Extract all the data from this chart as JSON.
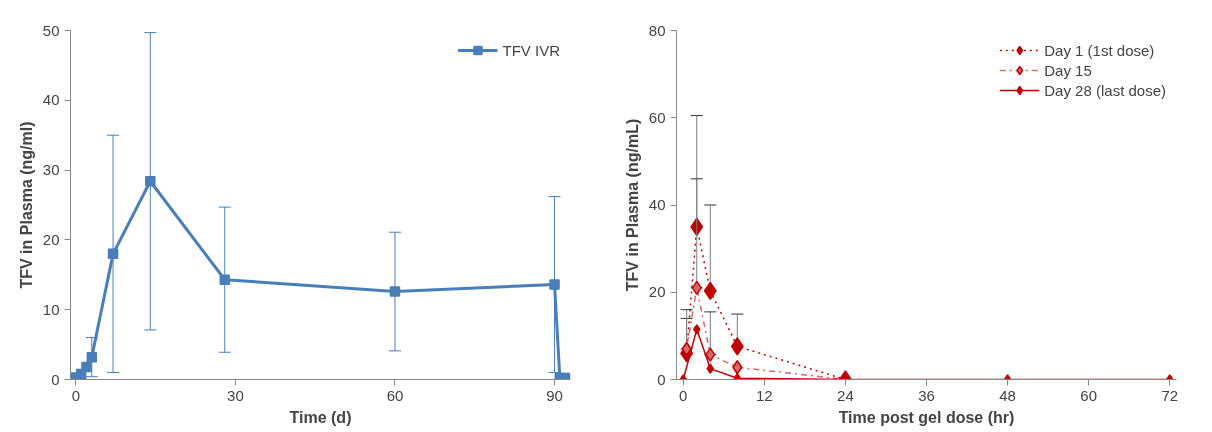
{
  "chart_data": [
    {
      "type": "line",
      "xlabel": "Time (d)",
      "ylabel": "TFV in Plasma (ng/ml)",
      "x": [
        0,
        1,
        2,
        3,
        7,
        14,
        28,
        60,
        90,
        91,
        92
      ],
      "xlim": [
        -1,
        93
      ],
      "xticks": [
        0,
        30,
        60,
        90
      ],
      "ylim": [
        0,
        50
      ],
      "yticks": [
        0,
        10,
        20,
        30,
        40,
        50
      ],
      "grid": false,
      "legend": "top right",
      "marker": "square",
      "line_style": "solid",
      "series": [
        {
          "name": "TFV IVR",
          "color": "#4a7ebb",
          "values": [
            0.3,
            0.8,
            1.8,
            3.2,
            18,
            28.4,
            14.3,
            12.6,
            13.6,
            0.2,
            0.2
          ],
          "errors": [
            null,
            null,
            null,
            2.8,
            17,
            21.3,
            10.4,
            8.5,
            12.6,
            null,
            null
          ]
        }
      ]
    },
    {
      "type": "line",
      "xlabel": "Time post gel dose (hr)",
      "ylabel": "TFV in Plasma (ng/mL)",
      "xlim": [
        -1,
        73
      ],
      "xticks": [
        0,
        12,
        24,
        36,
        48,
        60,
        72
      ],
      "ylim": [
        0,
        80
      ],
      "yticks": [
        0,
        20,
        40,
        60,
        80
      ],
      "grid": false,
      "legend": "top right",
      "marker": "diamond",
      "series": [
        {
          "name": "Day 1 (1st dose)",
          "color": "#c00000",
          "line_style": "dotted",
          "x": [
            0.5,
            2,
            4,
            8,
            24
          ],
          "values": [
            6,
            35,
            20.3,
            7.6,
            0
          ],
          "errors": [
            [
              6,
              14
            ],
            [
              35,
              60.5
            ],
            [
              20.3,
              40
            ],
            [
              7.6,
              15
            ],
            null
          ]
        },
        {
          "name": "Day 15",
          "color": "#d46a6a",
          "line_style": "dashed",
          "x": [
            0.5,
            2,
            4,
            8,
            24
          ],
          "values": [
            7,
            21,
            5.7,
            2.8,
            0
          ],
          "errors": [
            [
              7,
              16
            ],
            [
              21,
              46
            ],
            [
              5.7,
              15.5
            ],
            null,
            null
          ]
        },
        {
          "name": "Day 28 (last dose)",
          "color": "#c00000",
          "line_style": "solid",
          "x": [
            0,
            2,
            4,
            8,
            24,
            48,
            72
          ],
          "values": [
            0,
            11.5,
            2.5,
            0.3,
            0,
            0,
            0
          ]
        }
      ]
    }
  ]
}
